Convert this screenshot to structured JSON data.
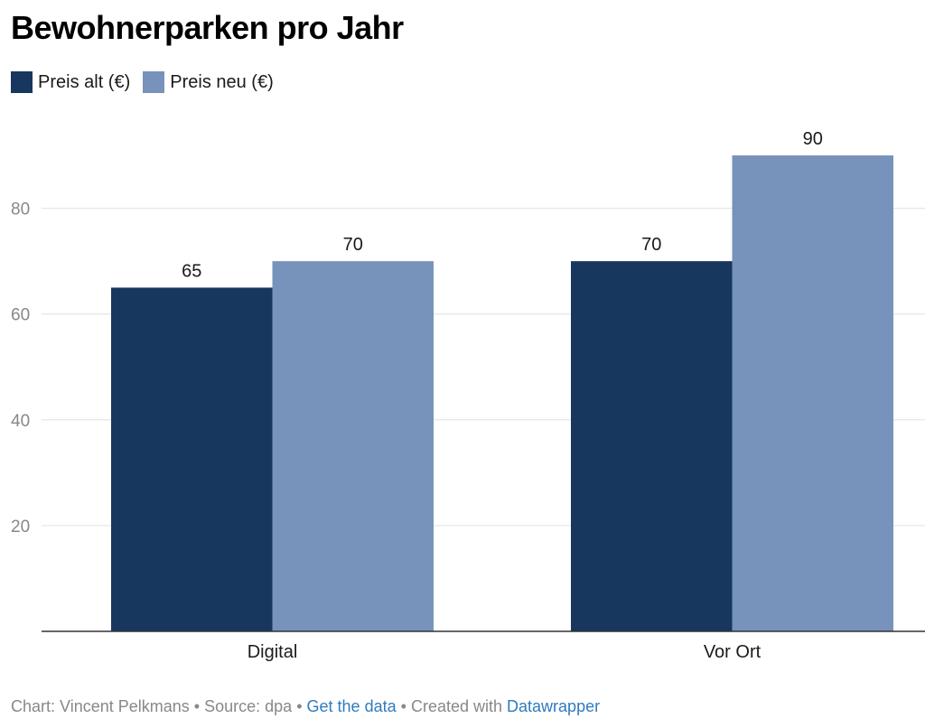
{
  "chart_data": {
    "type": "bar",
    "title": "Bewohnerparken pro Jahr",
    "categories": [
      "Digital",
      "Vor Ort"
    ],
    "series": [
      {
        "name": "Preis alt (€)",
        "values": [
          65,
          70
        ],
        "color": "#17375e"
      },
      {
        "name": "Preis neu (€)",
        "values": [
          70,
          90
        ],
        "color": "#7793bb"
      }
    ],
    "ylim": [
      0,
      90
    ],
    "yticks": [
      20,
      40,
      60,
      80
    ],
    "xlabel": "",
    "ylabel": "",
    "grid": true,
    "legend_position": "top-left"
  },
  "footer": {
    "chart_by": "Chart: Vincent Pelkmans",
    "separator": "•",
    "source": "Source: dpa",
    "get_data": "Get the data",
    "created_with": "Created with",
    "datawrapper": "Datawrapper"
  },
  "colors": {
    "link": "#2f7bbf",
    "grid": "#e0e0e0",
    "axis": "#333333",
    "tick_text": "#888888"
  }
}
